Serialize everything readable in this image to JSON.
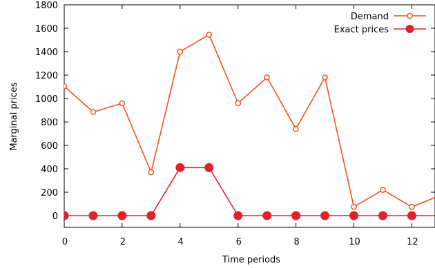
{
  "chart_data": {
    "type": "line",
    "title": "",
    "xlabel": "Time periods",
    "ylabel": "Marginal prices",
    "xlim": [
      0,
      12.8
    ],
    "ylim": [
      -100,
      1800
    ],
    "xticks": [
      "0",
      "2",
      "4",
      "6",
      "8",
      "10",
      "12"
    ],
    "yticks": [
      "0",
      "200",
      "400",
      "600",
      "800",
      "1000",
      "1200",
      "1400",
      "1600",
      "1800"
    ],
    "legend_position": "top-right",
    "series": [
      {
        "name": "Demand",
        "color": "#f4511e",
        "marker": "open-circle",
        "x": [
          0,
          1,
          2,
          3,
          4,
          5,
          6,
          7,
          8,
          9,
          10,
          11,
          12,
          13
        ],
        "y": [
          1105,
          885,
          960,
          370,
          1400,
          1545,
          960,
          1180,
          740,
          1180,
          75,
          220,
          75,
          175
        ]
      },
      {
        "name": "Exact prices",
        "color": "#e3212b",
        "marker": "filled-circle",
        "x": [
          0,
          1,
          2,
          3,
          4,
          5,
          6,
          7,
          8,
          9,
          10,
          11,
          12,
          13
        ],
        "y": [
          0,
          0,
          0,
          0,
          410,
          410,
          0,
          0,
          0,
          0,
          0,
          0,
          0,
          0
        ]
      }
    ]
  }
}
